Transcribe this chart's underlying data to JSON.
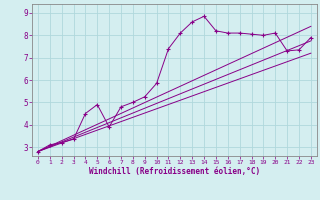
{
  "xlabel": "Windchill (Refroidissement éolien,°C)",
  "background_color": "#d4eef0",
  "line_color": "#880088",
  "grid_color": "#b0d8dc",
  "xlim": [
    -0.5,
    23.5
  ],
  "ylim": [
    2.6,
    9.4
  ],
  "xticks": [
    0,
    1,
    2,
    3,
    4,
    5,
    6,
    7,
    8,
    9,
    10,
    11,
    12,
    13,
    14,
    15,
    16,
    17,
    18,
    19,
    20,
    21,
    22,
    23
  ],
  "yticks": [
    3,
    4,
    5,
    6,
    7,
    8,
    9
  ],
  "series1_x": [
    0,
    1,
    2,
    3,
    4,
    5,
    6,
    7,
    8,
    9,
    10,
    11,
    12,
    13,
    14,
    15,
    16,
    17,
    18,
    19,
    20,
    21,
    22,
    23
  ],
  "series1_y": [
    2.8,
    3.1,
    3.2,
    3.35,
    4.5,
    4.9,
    3.9,
    4.8,
    5.0,
    5.25,
    5.85,
    7.4,
    8.1,
    8.6,
    8.85,
    8.2,
    8.1,
    8.1,
    8.05,
    8.0,
    8.1,
    7.3,
    7.35,
    7.9
  ],
  "line1_x": [
    0,
    23
  ],
  "line1_y": [
    2.8,
    8.4
  ],
  "line2_x": [
    0,
    23
  ],
  "line2_y": [
    2.8,
    7.75
  ],
  "line3_x": [
    0,
    23
  ],
  "line3_y": [
    2.8,
    7.2
  ]
}
